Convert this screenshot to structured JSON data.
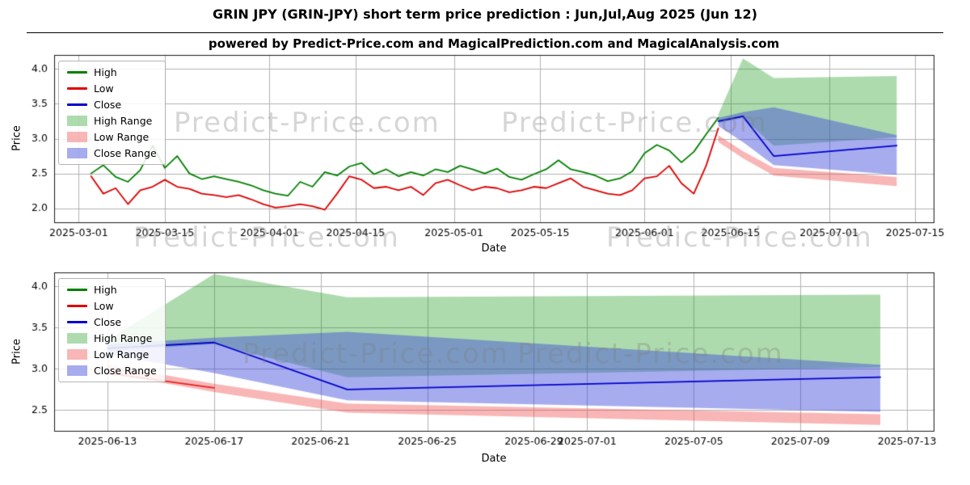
{
  "figure": {
    "title": "GRIN JPY (GRIN-JPY) short term price prediction : Jun,Jul,Aug 2025 (Jun 12)",
    "subtitle": "powered by Predict-Price.com and MagicalPrediction.com and MagicalAnalysis.com"
  },
  "watermark": {
    "text": "Predict-Price.com"
  },
  "colors": {
    "high": "#008000",
    "low": "#dd0000",
    "close": "#0000cc",
    "high_range": "rgba(40,160,40,0.38)",
    "low_range": "rgba(240,80,80,0.42)",
    "close_range": "rgba(60,70,220,0.45)",
    "grid": "#b0b0b0"
  },
  "legend": [
    {
      "label": "High",
      "type": "line",
      "color_key": "high"
    },
    {
      "label": "Low",
      "type": "line",
      "color_key": "low"
    },
    {
      "label": "Close",
      "type": "line",
      "color_key": "close"
    },
    {
      "label": "High Range",
      "type": "patch",
      "color_key": "high_range"
    },
    {
      "label": "Low Range",
      "type": "patch",
      "color_key": "low_range"
    },
    {
      "label": "Close Range",
      "type": "patch",
      "color_key": "close_range"
    }
  ],
  "chart_data": [
    {
      "type": "line",
      "xlabel": "Date",
      "ylabel": "Price",
      "xdomain": [
        "2025-02-25",
        "2025-07-18"
      ],
      "ydomain": [
        1.8,
        4.2
      ],
      "xticks": [
        "2025-03-01",
        "2025-03-15",
        "2025-04-01",
        "2025-04-15",
        "2025-05-01",
        "2025-05-15",
        "2025-06-01",
        "2025-06-15",
        "2025-07-01",
        "2025-07-15"
      ],
      "yticks": [
        2.0,
        2.5,
        3.0,
        3.5,
        4.0
      ],
      "grid": true,
      "legend_position": "upper left",
      "series": {
        "dates": [
          "2025-03-03",
          "2025-03-05",
          "2025-03-07",
          "2025-03-09",
          "2025-03-11",
          "2025-03-13",
          "2025-03-15",
          "2025-03-17",
          "2025-03-19",
          "2025-03-21",
          "2025-03-23",
          "2025-03-25",
          "2025-03-27",
          "2025-03-29",
          "2025-03-31",
          "2025-04-02",
          "2025-04-04",
          "2025-04-06",
          "2025-04-08",
          "2025-04-10",
          "2025-04-12",
          "2025-04-14",
          "2025-04-16",
          "2025-04-18",
          "2025-04-20",
          "2025-04-22",
          "2025-04-24",
          "2025-04-26",
          "2025-04-28",
          "2025-04-30",
          "2025-05-02",
          "2025-05-04",
          "2025-05-06",
          "2025-05-08",
          "2025-05-10",
          "2025-05-12",
          "2025-05-14",
          "2025-05-16",
          "2025-05-18",
          "2025-05-20",
          "2025-05-22",
          "2025-05-24",
          "2025-05-26",
          "2025-05-28",
          "2025-05-30",
          "2025-06-01",
          "2025-06-03",
          "2025-06-05",
          "2025-06-07",
          "2025-06-09",
          "2025-06-11",
          "2025-06-13"
        ],
        "high": [
          2.5,
          2.62,
          2.45,
          2.38,
          2.55,
          2.9,
          2.58,
          2.75,
          2.5,
          2.42,
          2.46,
          2.42,
          2.38,
          2.33,
          2.26,
          2.21,
          2.18,
          2.38,
          2.31,
          2.52,
          2.47,
          2.6,
          2.65,
          2.49,
          2.56,
          2.46,
          2.52,
          2.47,
          2.56,
          2.52,
          2.61,
          2.56,
          2.5,
          2.57,
          2.45,
          2.41,
          2.49,
          2.56,
          2.69,
          2.56,
          2.52,
          2.47,
          2.39,
          2.43,
          2.53,
          2.79,
          2.91,
          2.83,
          2.66,
          2.81,
          3.06,
          3.3
        ],
        "low": [
          2.46,
          2.21,
          2.29,
          2.06,
          2.26,
          2.31,
          2.41,
          2.31,
          2.28,
          2.21,
          2.19,
          2.16,
          2.19,
          2.13,
          2.06,
          2.01,
          2.03,
          2.06,
          2.03,
          1.98,
          2.21,
          2.46,
          2.41,
          2.29,
          2.31,
          2.26,
          2.31,
          2.19,
          2.36,
          2.41,
          2.33,
          2.26,
          2.31,
          2.29,
          2.23,
          2.26,
          2.31,
          2.29,
          2.36,
          2.43,
          2.31,
          2.26,
          2.21,
          2.19,
          2.26,
          2.43,
          2.46,
          2.61,
          2.36,
          2.21,
          2.61,
          3.15
        ]
      },
      "prediction": {
        "dates": [
          "2025-06-13",
          "2025-06-17",
          "2025-06-22",
          "2025-07-12"
        ],
        "close": [
          3.25,
          3.32,
          2.75,
          2.9
        ],
        "high_range_upper": [
          3.35,
          4.15,
          3.87,
          3.9
        ],
        "high_range_lower": [
          3.22,
          3.3,
          2.9,
          3.02
        ],
        "low_range_upper": [
          3.05,
          2.82,
          2.58,
          2.45
        ],
        "low_range_lower": [
          2.95,
          2.72,
          2.47,
          2.32
        ],
        "close_range_upper": [
          3.3,
          3.38,
          3.45,
          3.05
        ],
        "close_range_lower": [
          3.18,
          2.95,
          2.62,
          2.48
        ]
      }
    },
    {
      "type": "line",
      "xlabel": "Date",
      "ylabel": "Price",
      "xdomain": [
        "2025-06-11",
        "2025-07-14"
      ],
      "ydomain": [
        2.25,
        4.17
      ],
      "xticks": [
        "2025-06-13",
        "2025-06-17",
        "2025-06-21",
        "2025-06-25",
        "2025-06-29",
        "2025-07-01",
        "2025-07-05",
        "2025-07-09",
        "2025-07-13"
      ],
      "yticks": [
        2.5,
        3.0,
        3.5,
        4.0
      ],
      "grid": true,
      "legend_position": "upper left",
      "low_line": {
        "dates": [
          "2025-06-13",
          "2025-06-17"
        ],
        "values": [
          2.95,
          2.77
        ]
      },
      "prediction": {
        "dates": [
          "2025-06-13",
          "2025-06-17",
          "2025-06-22",
          "2025-07-12"
        ],
        "close": [
          3.25,
          3.32,
          2.75,
          2.9
        ],
        "high_range_upper": [
          3.35,
          4.15,
          3.87,
          3.9
        ],
        "high_range_lower": [
          3.22,
          3.3,
          2.9,
          3.02
        ],
        "low_range_upper": [
          3.05,
          2.82,
          2.58,
          2.45
        ],
        "low_range_lower": [
          2.95,
          2.72,
          2.47,
          2.32
        ],
        "close_range_upper": [
          3.3,
          3.38,
          3.45,
          3.05
        ],
        "close_range_lower": [
          3.18,
          2.95,
          2.62,
          2.48
        ]
      }
    }
  ]
}
